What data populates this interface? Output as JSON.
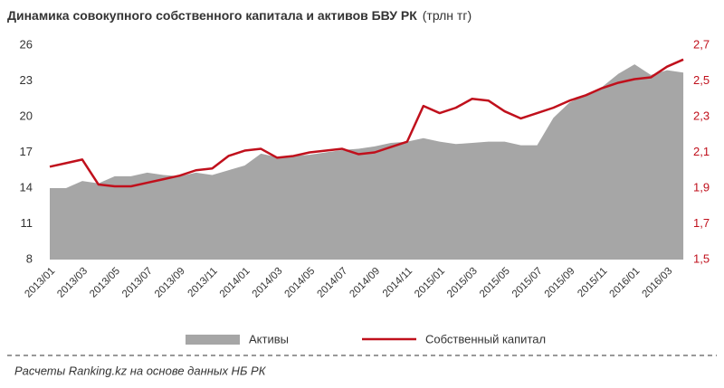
{
  "chart_data": {
    "type": "combo",
    "title": "Динамика совокупного собственного капитала и активов БВУ РК",
    "subtitle": "(трлн тг)",
    "source": "Расчеты Ranking.kz на основе данных НБ РК",
    "categories": [
      "2013/01",
      null,
      "2013/03",
      null,
      "2013/05",
      null,
      "2013/07",
      null,
      "2013/09",
      null,
      "2013/11",
      null,
      "2014/01",
      null,
      "2014/03",
      null,
      "2014/05",
      null,
      "2014/07",
      null,
      "2014/09",
      null,
      "2014/11",
      null,
      "2015/01",
      null,
      "2015/03",
      null,
      "2015/05",
      null,
      "2015/07",
      null,
      "2015/09",
      null,
      "2015/11",
      null,
      "2016/01",
      null,
      "2016/03",
      null
    ],
    "series": [
      {
        "name": "Активы",
        "type": "area",
        "color": "#a6a6a6",
        "values": [
          14.0,
          14.0,
          14.6,
          14.4,
          15.0,
          15.0,
          15.3,
          15.1,
          15.0,
          15.3,
          15.1,
          15.5,
          15.9,
          16.9,
          16.6,
          16.7,
          16.8,
          17.0,
          17.2,
          17.3,
          17.5,
          17.8,
          17.9,
          18.2,
          17.9,
          17.7,
          17.8,
          17.9,
          17.9,
          17.6,
          17.6,
          19.9,
          21.2,
          21.8,
          22.5,
          23.6,
          24.4,
          23.5,
          23.9,
          23.7
        ]
      },
      {
        "name": "Собственный капитал",
        "type": "line",
        "axis": "y2",
        "color": "#c0101c",
        "values": [
          2.02,
          2.04,
          2.06,
          1.92,
          1.91,
          1.91,
          1.93,
          1.95,
          1.97,
          2.0,
          2.01,
          2.08,
          2.11,
          2.12,
          2.07,
          2.08,
          2.1,
          2.11,
          2.12,
          2.09,
          2.1,
          2.13,
          2.16,
          2.36,
          2.32,
          2.35,
          2.4,
          2.39,
          2.33,
          2.29,
          2.32,
          2.35,
          2.39,
          2.42,
          2.46,
          2.49,
          2.51,
          2.52,
          2.58,
          2.62
        ]
      }
    ],
    "ylim": [
      8,
      26
    ],
    "yticks": [
      8,
      11,
      14,
      17,
      20,
      23,
      26
    ],
    "y2lim": [
      1.5,
      2.7
    ],
    "y2ticks": [
      {
        "value": 1.5,
        "label": "1,5"
      },
      {
        "value": 1.7,
        "label": "1,7"
      },
      {
        "value": 1.9,
        "label": "1,9"
      },
      {
        "value": 2.1,
        "label": "2,1"
      },
      {
        "value": 2.3,
        "label": "2,3"
      },
      {
        "value": 2.5,
        "label": "2,5"
      },
      {
        "value": 2.7,
        "label": "2,7"
      }
    ],
    "grid": false,
    "legend": "bottom"
  }
}
